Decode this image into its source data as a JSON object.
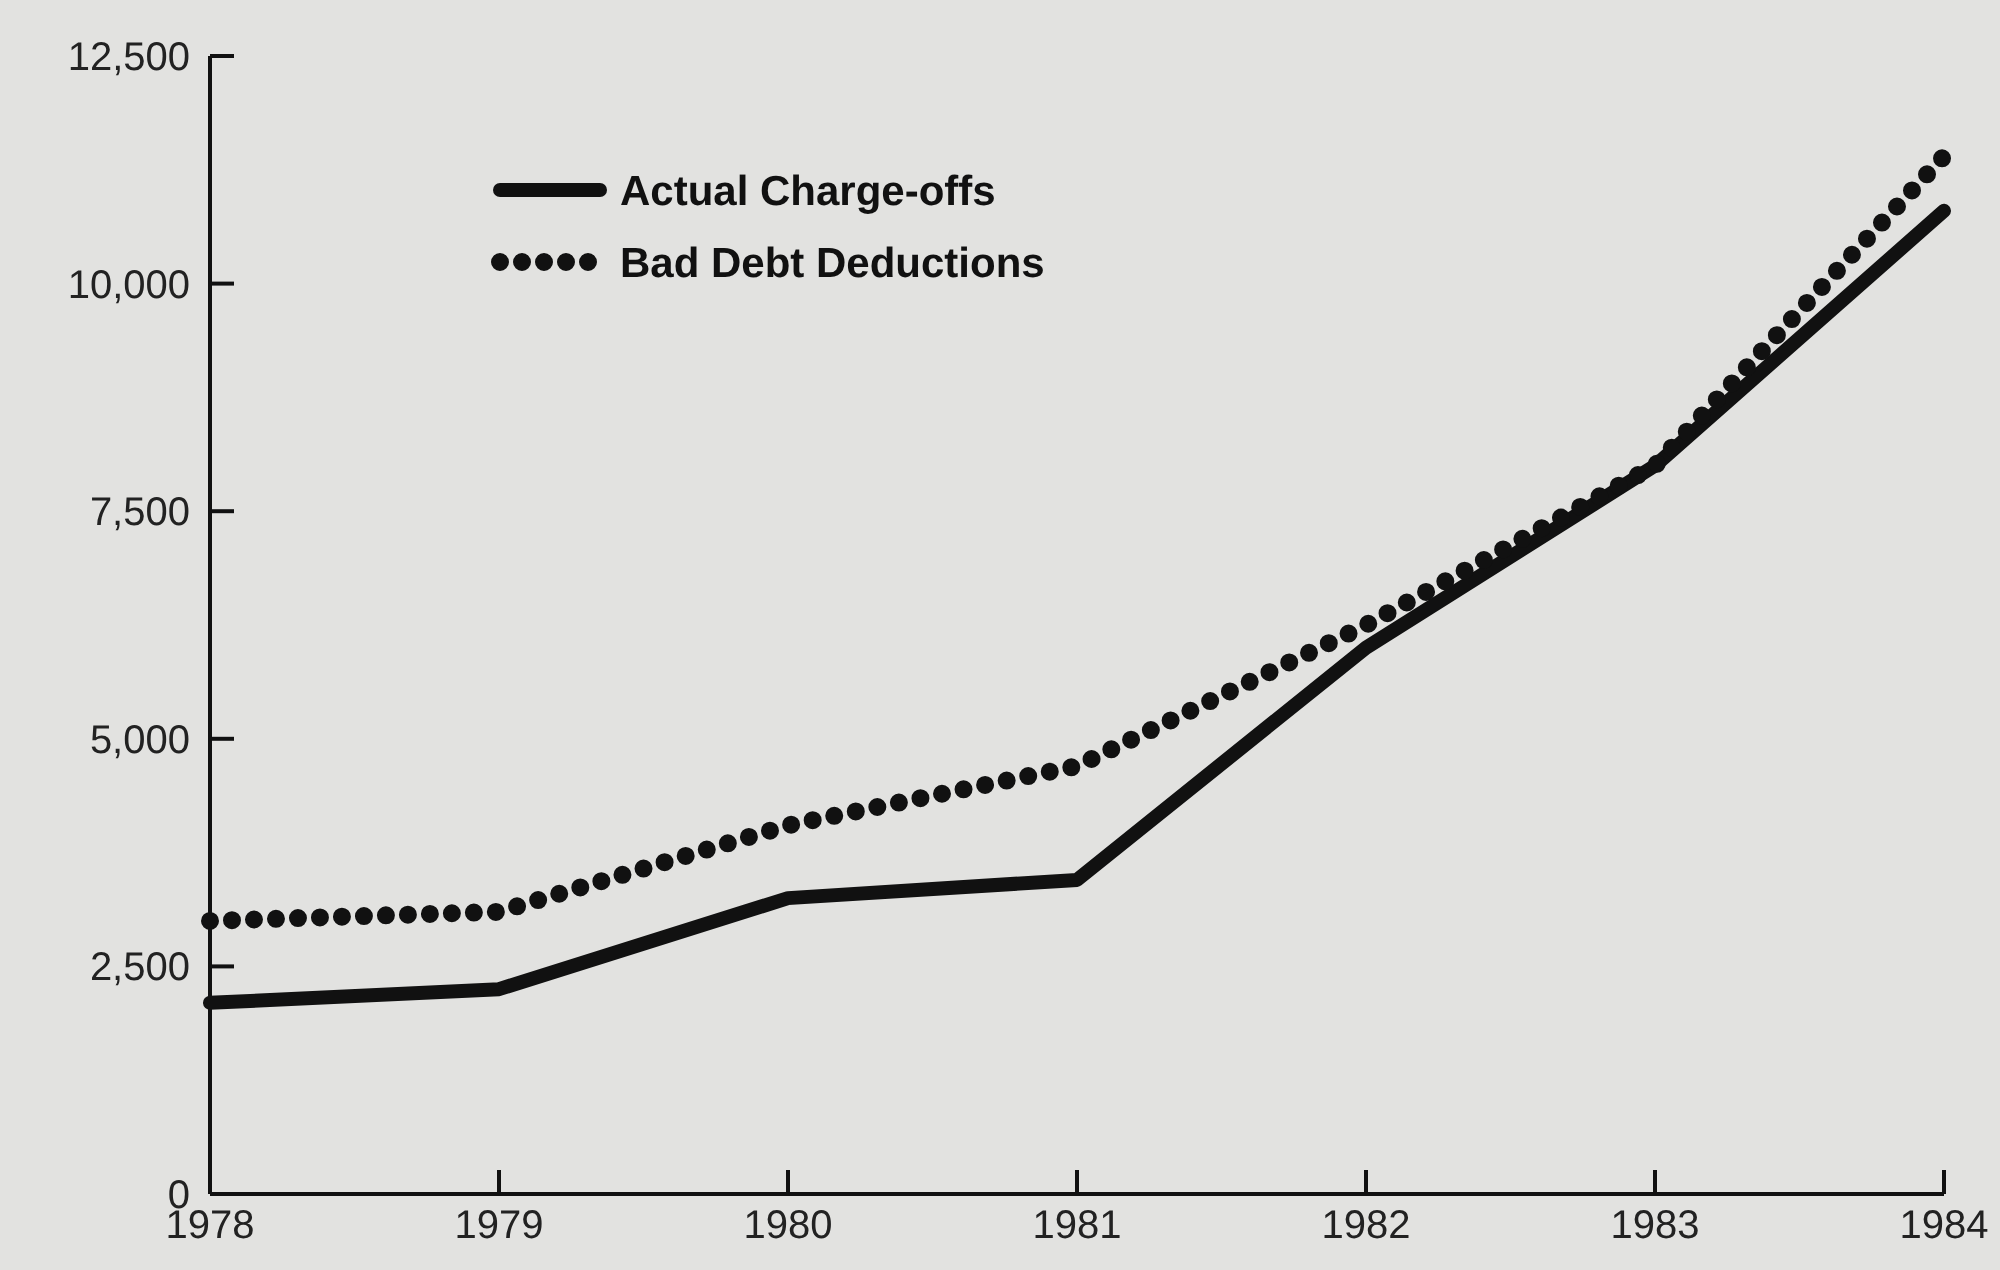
{
  "chart_data": {
    "type": "line",
    "x": [
      1978,
      1979,
      1980,
      1981,
      1982,
      1983,
      1984
    ],
    "xlim": [
      1978,
      1984
    ],
    "xticks": [
      1978,
      1979,
      1980,
      1981,
      1982,
      1983,
      1984
    ],
    "ylim": [
      0,
      12500
    ],
    "yticks": [
      {
        "value": 0,
        "label": "0"
      },
      {
        "value": 2500,
        "label": "2,500"
      },
      {
        "value": 5000,
        "label": "5,000"
      },
      {
        "value": 7500,
        "label": "7,500"
      },
      {
        "value": 10000,
        "label": "10,000"
      },
      {
        "value": 12500,
        "label": "12,500"
      }
    ],
    "series": [
      {
        "name": "Actual Charge-offs",
        "color": "#111111",
        "line_style": "solid",
        "values": [
          2100,
          2250,
          3250,
          3450,
          6000,
          8000,
          10800
        ]
      },
      {
        "name": "Bad Debt Deductions",
        "color": "#111111",
        "line_style": "dotted",
        "values": [
          3000,
          3100,
          4050,
          4700,
          6250,
          8000,
          11400
        ]
      }
    ],
    "legend": "top left",
    "grid": false
  }
}
